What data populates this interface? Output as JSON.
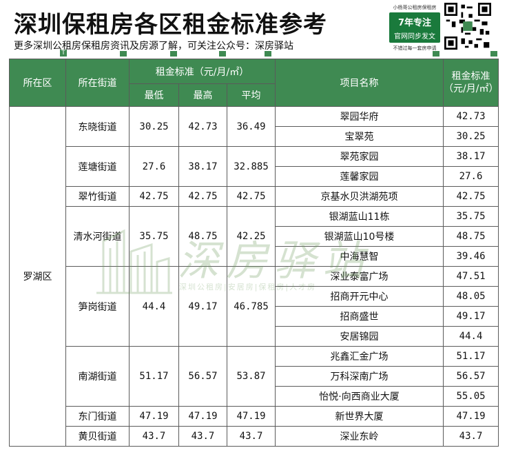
{
  "header": {
    "title": "深圳保租房各区租金标准参考",
    "subtitle": "更多深圳公租房保租房资讯及房源了解，可关注公众号：深房驿站"
  },
  "promo": {
    "top_text": "小杨哥公租房保租房",
    "line1": "7年专注",
    "line2": "官网同步发文",
    "bottom_text": "不错过每一套房申请"
  },
  "filter_icon": "T",
  "table": {
    "headers": {
      "district": "所在区",
      "street": "所在街道",
      "rent_group": "租金标准（元/月/㎡）",
      "min": "最低",
      "max": "最高",
      "avg": "平均",
      "project": "项目名称",
      "project_rent": "租金标准（元/月/㎡）"
    },
    "district": "罗湖区",
    "streets": [
      {
        "name": "东晓街道",
        "min": "30.25",
        "max": "42.73",
        "avg": "36.49"
      },
      {
        "name": "莲塘街道",
        "min": "27.6",
        "max": "38.17",
        "avg": "32.885"
      },
      {
        "name": "翠竹街道",
        "min": "42.75",
        "max": "42.75",
        "avg": "42.75"
      },
      {
        "name": "清水河街道",
        "min": "35.75",
        "max": "48.75",
        "avg": "42.25"
      },
      {
        "name": "笋岗街道",
        "min": "44.4",
        "max": "49.17",
        "avg": "46.785"
      },
      {
        "name": "南湖街道",
        "min": "51.17",
        "max": "56.57",
        "avg": "53.87"
      },
      {
        "name": "东门街道",
        "min": "47.19",
        "max": "47.19",
        "avg": "47.19"
      },
      {
        "name": "黄贝街道",
        "min": "43.7",
        "max": "43.7",
        "avg": "43.7"
      }
    ],
    "projects": [
      {
        "name": "翠园华府",
        "rent": "42.73"
      },
      {
        "name": "宝翠苑",
        "rent": "30.25"
      },
      {
        "name": "翠苑家园",
        "rent": "38.17"
      },
      {
        "name": "莲馨家园",
        "rent": "27.6"
      },
      {
        "name": "京基水贝洪湖苑项",
        "rent": "42.75"
      },
      {
        "name": "银湖蓝山11栋",
        "rent": "35.75"
      },
      {
        "name": "银湖蓝山10号楼",
        "rent": "48.75"
      },
      {
        "name": "中海慧智",
        "rent": "39.46"
      },
      {
        "name": "深业泰富广场",
        "rent": "47.51"
      },
      {
        "name": "招商开元中心",
        "rent": "48.05"
      },
      {
        "name": "招商盛世",
        "rent": "49.17"
      },
      {
        "name": "安居锦园",
        "rent": "44.4"
      },
      {
        "name": "兆鑫汇金广场",
        "rent": "51.17"
      },
      {
        "name": "万科深南广场",
        "rent": "56.57"
      },
      {
        "name": "怡悦·向西商业大厦",
        "rent": "55.05"
      },
      {
        "name": "新世界大厦",
        "rent": "47.19"
      },
      {
        "name": "深业东岭",
        "rent": "43.7"
      }
    ]
  },
  "watermark": {
    "text": "深房驿站",
    "sub": "深圳公租房|安居房|保租房|人才房"
  }
}
